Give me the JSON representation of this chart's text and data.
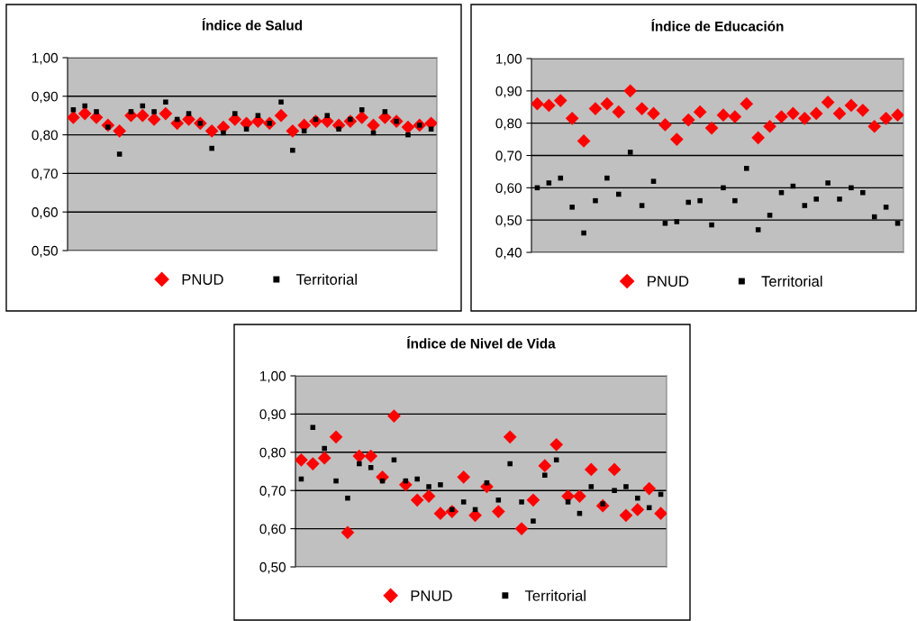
{
  "chart_data": [
    {
      "type": "scatter",
      "title": "Índice de Salud",
      "categories": [
        null,
        null,
        null,
        null,
        null,
        null,
        null,
        null,
        null,
        null,
        null,
        null,
        null,
        null,
        null,
        null,
        null,
        null,
        null,
        null,
        null,
        null,
        null,
        null,
        null,
        null,
        null,
        null,
        null,
        null,
        null,
        null
      ],
      "series": [
        {
          "name": "PNUD",
          "color": "#ff0000",
          "marker": "diamond",
          "values": [
            0.845,
            0.855,
            0.845,
            0.825,
            0.81,
            0.85,
            0.85,
            0.84,
            0.855,
            0.83,
            0.84,
            0.83,
            0.81,
            0.82,
            0.84,
            0.83,
            0.835,
            0.83,
            0.85,
            0.81,
            0.825,
            0.835,
            0.835,
            0.825,
            0.835,
            0.845,
            0.825,
            0.845,
            0.835,
            0.82,
            0.825,
            0.83
          ]
        },
        {
          "name": "Territorial",
          "color": "#000000",
          "marker": "square",
          "values": [
            0.865,
            0.875,
            0.86,
            0.82,
            0.75,
            0.86,
            0.875,
            0.86,
            0.885,
            0.84,
            0.855,
            0.83,
            0.765,
            0.805,
            0.855,
            0.815,
            0.85,
            0.83,
            0.885,
            0.76,
            0.81,
            0.84,
            0.85,
            0.815,
            0.84,
            0.865,
            0.805,
            0.86,
            0.835,
            0.8,
            0.825,
            0.815
          ]
        }
      ],
      "ylim": [
        0.5,
        1.0
      ],
      "yticks": [
        {
          "value": 0.5,
          "label": "0,50"
        },
        {
          "value": 0.6,
          "label": "0,60"
        },
        {
          "value": 0.7,
          "label": "0,70"
        },
        {
          "value": 0.8,
          "label": "0,80"
        },
        {
          "value": 0.9,
          "label": "0,90"
        },
        {
          "value": 1.0,
          "label": "1,00"
        }
      ],
      "grid": "y",
      "legend": "bottom",
      "tick_labels": "y"
    },
    {
      "type": "scatter",
      "title": "Índice de Educación",
      "categories": [
        null,
        null,
        null,
        null,
        null,
        null,
        null,
        null,
        null,
        null,
        null,
        null,
        null,
        null,
        null,
        null,
        null,
        null,
        null,
        null,
        null,
        null,
        null,
        null,
        null,
        null,
        null,
        null,
        null,
        null,
        null,
        null
      ],
      "series": [
        {
          "name": "PNUD",
          "color": "#ff0000",
          "marker": "diamond",
          "values": [
            0.86,
            0.855,
            0.87,
            0.815,
            0.745,
            0.845,
            0.86,
            0.835,
            0.9,
            0.845,
            0.83,
            0.795,
            0.75,
            0.81,
            0.835,
            0.785,
            0.825,
            0.82,
            0.86,
            0.755,
            0.79,
            0.82,
            0.83,
            0.815,
            0.83,
            0.865,
            0.83,
            0.855,
            0.84,
            0.79,
            0.815,
            0.825
          ]
        },
        {
          "name": "Territorial",
          "color": "#000000",
          "marker": "square",
          "values": [
            0.6,
            0.615,
            0.63,
            0.54,
            0.46,
            0.56,
            0.63,
            0.58,
            0.71,
            0.545,
            0.62,
            0.49,
            0.495,
            0.555,
            0.56,
            0.485,
            0.6,
            0.56,
            0.66,
            0.47,
            0.515,
            0.585,
            0.605,
            0.545,
            0.565,
            0.615,
            0.565,
            0.6,
            0.585,
            0.51,
            0.54,
            0.49
          ]
        }
      ],
      "ylim": [
        0.4,
        1.0
      ],
      "yticks": [
        {
          "value": 0.4,
          "label": "0,40"
        },
        {
          "value": 0.5,
          "label": "0,50"
        },
        {
          "value": 0.6,
          "label": "0,60"
        },
        {
          "value": 0.7,
          "label": "0,70"
        },
        {
          "value": 0.8,
          "label": "0,80"
        },
        {
          "value": 0.9,
          "label": "0,90"
        },
        {
          "value": 1.0,
          "label": "1,00"
        }
      ],
      "grid": "y",
      "legend": "bottom",
      "tick_labels": "y"
    },
    {
      "type": "scatter",
      "title": "Índice de Nivel de Vida",
      "categories": [
        null,
        null,
        null,
        null,
        null,
        null,
        null,
        null,
        null,
        null,
        null,
        null,
        null,
        null,
        null,
        null,
        null,
        null,
        null,
        null,
        null,
        null,
        null,
        null,
        null,
        null,
        null,
        null,
        null,
        null,
        null,
        null
      ],
      "series": [
        {
          "name": "PNUD",
          "color": "#ff0000",
          "marker": "diamond",
          "values": [
            0.78,
            0.77,
            0.785,
            0.84,
            0.59,
            0.79,
            0.79,
            0.735,
            0.895,
            0.715,
            0.675,
            0.685,
            0.64,
            0.645,
            0.735,
            0.635,
            0.71,
            0.645,
            0.84,
            0.6,
            0.675,
            0.765,
            0.82,
            0.685,
            0.685,
            0.755,
            0.66,
            0.755,
            0.635,
            0.65,
            0.705,
            0.64
          ]
        },
        {
          "name": "Territorial",
          "color": "#000000",
          "marker": "square",
          "values": [
            0.73,
            0.865,
            0.81,
            0.725,
            0.68,
            0.77,
            0.76,
            0.725,
            0.78,
            0.725,
            0.73,
            0.71,
            0.715,
            0.65,
            0.67,
            0.65,
            0.72,
            0.675,
            0.77,
            0.67,
            0.62,
            0.74,
            0.78,
            0.67,
            0.64,
            0.71,
            0.665,
            0.7,
            0.71,
            0.68,
            0.655,
            0.69
          ]
        }
      ],
      "ylim": [
        0.5,
        1.0
      ],
      "yticks": [
        {
          "value": 0.5,
          "label": "0,50"
        },
        {
          "value": 0.6,
          "label": "0,60"
        },
        {
          "value": 0.7,
          "label": "0,70"
        },
        {
          "value": 0.8,
          "label": "0,80"
        },
        {
          "value": 0.9,
          "label": "0,90"
        },
        {
          "value": 1.0,
          "label": "1,00"
        }
      ],
      "grid": "y",
      "legend": "bottom",
      "tick_labels": "y"
    }
  ]
}
